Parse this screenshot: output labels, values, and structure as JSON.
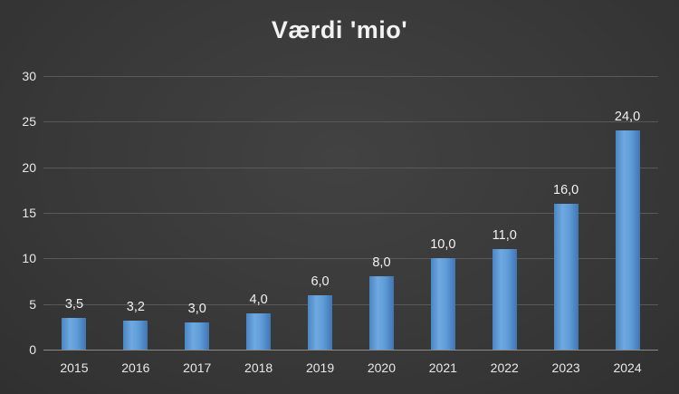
{
  "chart_data": {
    "type": "bar",
    "title": "Værdi 'mio'",
    "categories": [
      "2015",
      "2016",
      "2017",
      "2018",
      "2019",
      "2020",
      "2021",
      "2022",
      "2023",
      "2024"
    ],
    "values": [
      3.5,
      3.2,
      3.0,
      4.0,
      6.0,
      8.0,
      10.0,
      11.0,
      16.0,
      24.0
    ],
    "value_labels": [
      "3,5",
      "3,2",
      "3,0",
      "4,0",
      "6,0",
      "8,0",
      "10,0",
      "11,0",
      "16,0",
      "24,0"
    ],
    "xlabel": "",
    "ylabel": "",
    "ylim": [
      0,
      30
    ],
    "yticks": [
      0,
      5,
      10,
      15,
      20,
      25,
      30
    ],
    "grid": "horizontal",
    "legend": "none",
    "colors": {
      "bar": "#5b9bd5",
      "background": "#3a3a3a",
      "gridline": "#595959",
      "text": "#f2f2f2"
    }
  }
}
